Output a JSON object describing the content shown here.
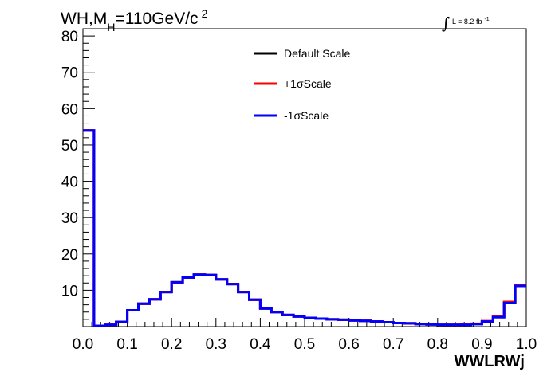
{
  "chart_data": {
    "type": "line",
    "title": {
      "main": "WH,M",
      "sub": "H",
      "rest": "=110GeV/c",
      "sup": "2"
    },
    "luminosity": {
      "symbol": "∫",
      "text": "L = 8.2 fb",
      "sup": "-1"
    },
    "xlabel": "WWLRWj",
    "ylabel": "",
    "xlim": [
      0.0,
      1.0
    ],
    "ylim": [
      0,
      82
    ],
    "xticks": [
      0.0,
      0.1,
      0.2,
      0.3,
      0.4,
      0.5,
      0.6,
      0.7,
      0.8,
      0.9,
      1.0
    ],
    "xtick_labels": [
      "0.0",
      "0.1",
      "0.2",
      "0.3",
      "0.4",
      "0.5",
      "0.6",
      "0.7",
      "0.8",
      "0.9",
      "1.0"
    ],
    "yticks": [
      10,
      20,
      30,
      40,
      50,
      60,
      70,
      80
    ],
    "ytick_labels": [
      "10",
      "20",
      "30",
      "40",
      "50",
      "60",
      "70",
      "80"
    ],
    "legend_position": "top-center",
    "bin_edges": [
      0.0,
      0.025,
      0.05,
      0.075,
      0.1,
      0.125,
      0.15,
      0.175,
      0.2,
      0.225,
      0.25,
      0.275,
      0.3,
      0.325,
      0.35,
      0.375,
      0.4,
      0.425,
      0.45,
      0.475,
      0.5,
      0.525,
      0.55,
      0.575,
      0.6,
      0.625,
      0.65,
      0.675,
      0.7,
      0.725,
      0.75,
      0.775,
      0.8,
      0.825,
      0.85,
      0.875,
      0.9,
      0.925,
      0.95,
      0.975,
      1.0
    ],
    "series": [
      {
        "name": "Default Scale",
        "color": "#000000",
        "values": [
          54.0,
          0.2,
          0.5,
          1.3,
          4.5,
          6.3,
          7.5,
          9.5,
          12.2,
          13.5,
          14.3,
          14.2,
          13.0,
          11.7,
          9.5,
          7.4,
          5.0,
          4.0,
          3.2,
          2.8,
          2.4,
          2.2,
          2.0,
          1.9,
          1.7,
          1.6,
          1.4,
          1.2,
          1.0,
          0.9,
          0.7,
          0.6,
          0.5,
          0.5,
          0.5,
          0.7,
          1.4,
          2.6,
          6.5,
          11.2
        ]
      },
      {
        "name": "+1σScale",
        "color": "#ff0000",
        "values": [
          54.0,
          0.2,
          0.5,
          1.3,
          4.5,
          6.3,
          7.5,
          9.5,
          12.2,
          13.5,
          14.3,
          14.2,
          13.0,
          11.7,
          9.5,
          7.4,
          5.0,
          4.0,
          3.2,
          2.8,
          2.4,
          2.2,
          2.0,
          1.9,
          1.7,
          1.6,
          1.4,
          1.2,
          1.0,
          0.9,
          0.7,
          0.6,
          0.5,
          0.5,
          0.6,
          0.8,
          1.5,
          2.9,
          6.8,
          11.4
        ]
      },
      {
        "name": "-1σScale",
        "color": "#0000ff",
        "values": [
          54.0,
          0.2,
          0.5,
          1.3,
          4.5,
          6.3,
          7.5,
          9.5,
          12.2,
          13.5,
          14.3,
          14.2,
          13.0,
          11.7,
          9.5,
          7.4,
          5.0,
          4.0,
          3.2,
          2.8,
          2.4,
          2.2,
          2.0,
          1.9,
          1.7,
          1.6,
          1.4,
          1.2,
          1.0,
          0.9,
          0.7,
          0.6,
          0.5,
          0.5,
          0.5,
          0.7,
          1.4,
          2.6,
          6.5,
          11.2
        ]
      }
    ]
  }
}
